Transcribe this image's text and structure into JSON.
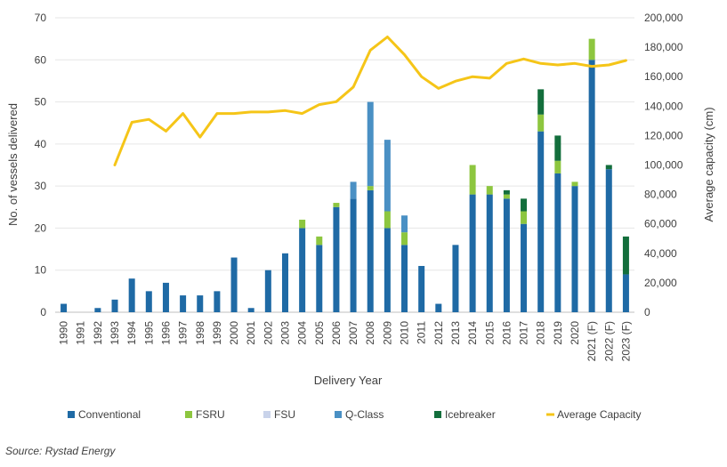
{
  "chart_data": {
    "type": "bar",
    "stacked": true,
    "xlabel": "Delivery Year",
    "ylabel": "No. of vessels delivered",
    "y2label": "Average capacity (cm)",
    "ylim": [
      0,
      70
    ],
    "y2lim": [
      0,
      200000
    ],
    "yticks": [
      "0",
      "10",
      "20",
      "30",
      "40",
      "50",
      "60",
      "70"
    ],
    "y2ticks": [
      "0",
      "20,000",
      "40,000",
      "60,000",
      "80,000",
      "100,000",
      "120,000",
      "140,000",
      "160,000",
      "180,000",
      "200,000"
    ],
    "grid": true,
    "categories": [
      "1990",
      "1991",
      "1992",
      "1993",
      "1994",
      "1995",
      "1996",
      "1997",
      "1998",
      "1999",
      "2000",
      "2001",
      "2002",
      "2003",
      "2004",
      "2005",
      "2006",
      "2007",
      "2008",
      "2009",
      "2010",
      "2011",
      "2012",
      "2013",
      "2014",
      "2015",
      "2016",
      "2017",
      "2018",
      "2019",
      "2020",
      "2021 (F)",
      "2022 (F)",
      "2023 (F)"
    ],
    "series": [
      {
        "name": "Conventional",
        "color": "#1f6aa5",
        "values": [
          2,
          0,
          1,
          3,
          8,
          5,
          7,
          4,
          4,
          5,
          13,
          1,
          10,
          14,
          20,
          16,
          25,
          27,
          29,
          20,
          16,
          11,
          2,
          16,
          28,
          28,
          27,
          21,
          43,
          33,
          30,
          60,
          34,
          9
        ]
      },
      {
        "name": "FSRU",
        "color": "#8dc63f",
        "values": [
          0,
          0,
          0,
          0,
          0,
          0,
          0,
          0,
          0,
          0,
          0,
          0,
          0,
          0,
          2,
          2,
          1,
          0,
          1,
          4,
          3,
          0,
          0,
          0,
          7,
          2,
          1,
          3,
          4,
          3,
          1,
          5,
          0,
          0
        ]
      },
      {
        "name": "FSU",
        "color": "#c9d3ea",
        "values": [
          0,
          0,
          0,
          0,
          0,
          0,
          0,
          0,
          0,
          0,
          0,
          0,
          0,
          0,
          0,
          0,
          0,
          0,
          0,
          0,
          0,
          0,
          0,
          0,
          0,
          0,
          0,
          0,
          0,
          0,
          0,
          0,
          0,
          0
        ]
      },
      {
        "name": "Q-Class",
        "color": "#4a90c4",
        "values": [
          0,
          0,
          0,
          0,
          0,
          0,
          0,
          0,
          0,
          0,
          0,
          0,
          0,
          0,
          0,
          0,
          0,
          4,
          20,
          17,
          4,
          0,
          0,
          0,
          0,
          0,
          0,
          0,
          0,
          0,
          0,
          0,
          0,
          0
        ]
      },
      {
        "name": "Icebreaker",
        "color": "#136e3c",
        "values": [
          0,
          0,
          0,
          0,
          0,
          0,
          0,
          0,
          0,
          0,
          0,
          0,
          0,
          0,
          0,
          0,
          0,
          0,
          0,
          0,
          0,
          0,
          0,
          0,
          0,
          0,
          1,
          3,
          6,
          6,
          0,
          0,
          1,
          9
        ]
      },
      {
        "name": "Average Capacity",
        "type": "line",
        "axis": "right",
        "color": "#f5c518",
        "values": [
          null,
          null,
          null,
          100000,
          129000,
          131000,
          123000,
          135000,
          119000,
          135000,
          135000,
          136000,
          136000,
          137000,
          135000,
          141000,
          143000,
          153000,
          178000,
          187000,
          175000,
          160000,
          152000,
          157000,
          160000,
          159000,
          169000,
          172000,
          169000,
          168000,
          169000,
          167000,
          168000,
          171000
        ]
      }
    ]
  },
  "legend": [
    {
      "label": "Conventional",
      "color": "#1f6aa5",
      "kind": "box"
    },
    {
      "label": "FSRU",
      "color": "#8dc63f",
      "kind": "box"
    },
    {
      "label": "FSU",
      "color": "#c9d3ea",
      "kind": "box"
    },
    {
      "label": "Q-Class",
      "color": "#4a90c4",
      "kind": "box"
    },
    {
      "label": "Icebreaker",
      "color": "#136e3c",
      "kind": "box"
    },
    {
      "label": "Average Capacity",
      "color": "#f5c518",
      "kind": "line"
    }
  ],
  "source": "Source: Rystad Energy"
}
